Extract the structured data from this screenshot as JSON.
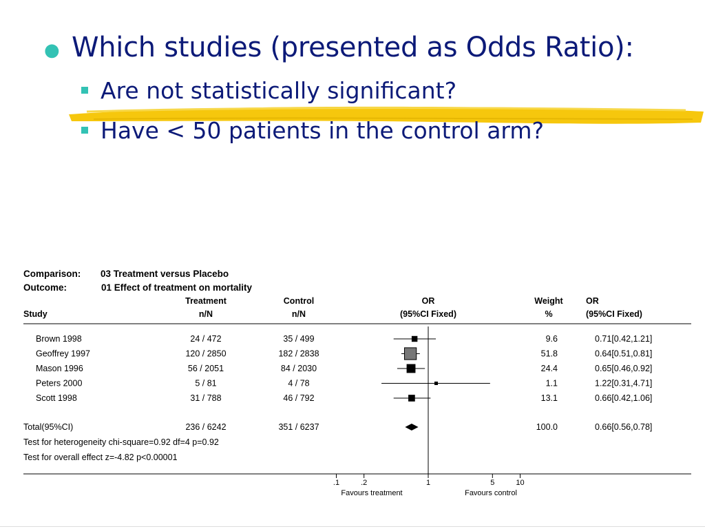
{
  "slide": {
    "bullet": "Which studies (presented as Odds Ratio):",
    "sub_bullets": [
      "Are not statistically significant?",
      "Have < 50 patients in the control arm?"
    ],
    "colors": {
      "text": "#0c1a78",
      "bullet_marker": "#33c2b4",
      "highlight": "#f5c400"
    }
  },
  "chart_data": {
    "type": "forest",
    "comparison_label": "Comparison:",
    "comparison": "03 Treatment versus Placebo",
    "outcome_label": "Outcome:",
    "outcome": "01 Effect of treatment on mortality",
    "headers": {
      "study": "Study",
      "treatment": [
        "Treatment",
        "n/N"
      ],
      "control": [
        "Control",
        "n/N"
      ],
      "or": [
        "OR",
        "(95%CI Fixed)"
      ],
      "weight": [
        "Weight",
        "%"
      ],
      "or_ci": [
        "OR",
        "(95%CI Fixed)"
      ]
    },
    "studies": [
      {
        "name": "Brown 1998",
        "treatment": "24 / 472",
        "control": "35 / 499",
        "or": 0.71,
        "lo": 0.42,
        "hi": 1.21,
        "weight": "9.6",
        "label": "0.71[0.42,1.21]"
      },
      {
        "name": "Geoffrey 1997",
        "treatment": "120 / 2850",
        "control": "182 / 2838",
        "or": 0.64,
        "lo": 0.51,
        "hi": 0.81,
        "weight": "51.8",
        "label": "0.64[0.51,0.81]"
      },
      {
        "name": "Mason 1996",
        "treatment": "56 / 2051",
        "control": "84 / 2030",
        "or": 0.65,
        "lo": 0.46,
        "hi": 0.92,
        "weight": "24.4",
        "label": "0.65[0.46,0.92]"
      },
      {
        "name": "Peters 2000",
        "treatment": "5 / 81",
        "control": "4 / 78",
        "or": 1.22,
        "lo": 0.31,
        "hi": 4.71,
        "weight": "1.1",
        "label": "1.22[0.31,4.71]"
      },
      {
        "name": "Scott 1998",
        "treatment": "31 / 788",
        "control": "46 / 792",
        "or": 0.66,
        "lo": 0.42,
        "hi": 1.06,
        "weight": "13.1",
        "label": "0.66[0.42,1.06]"
      }
    ],
    "total": {
      "name": "Total(95%CI)",
      "treatment": "236 / 6242",
      "control": "351 / 6237",
      "or": 0.66,
      "lo": 0.56,
      "hi": 0.78,
      "weight": "100.0",
      "label": "0.66[0.56,0.78]"
    },
    "heterogeneity": "Test for heterogeneity chi-square=0.92  df=4  p=0.92",
    "overall_effect": "Test for overall effect  z=-4.82  p<0.00001",
    "x_scale": "log",
    "xlim": [
      0.1,
      10
    ],
    "x_ticks": [
      {
        "value": 0.1,
        "label": ".1"
      },
      {
        "value": 0.2,
        "label": ".2"
      },
      {
        "value": 1,
        "label": "1"
      },
      {
        "value": 5,
        "label": "5"
      },
      {
        "value": 10,
        "label": "10"
      }
    ],
    "favours_left": "Favours treatment",
    "favours_right": "Favours control"
  }
}
